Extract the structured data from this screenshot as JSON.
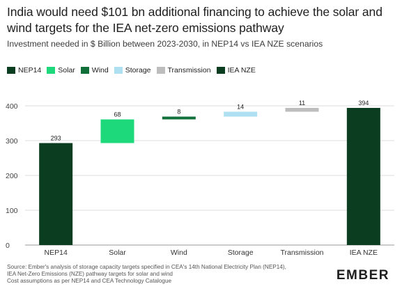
{
  "chart_data": {
    "type": "bar",
    "title": "India would need $101 bn additional financing to achieve the solar and wind targets for the IEA net-zero emissions pathway",
    "subtitle": "Investment needed in $ Billion between 2023-2030, in NEP14 vs IEA NZE scenarios",
    "categories": [
      "NEP14",
      "Solar",
      "Wind",
      "Storage",
      "Transmission",
      "IEA NZE"
    ],
    "values": [
      293,
      68,
      8,
      14,
      11,
      394
    ],
    "value_labels": [
      "293",
      "68",
      "8",
      "14",
      "11",
      "394"
    ],
    "bar_kind": [
      "total",
      "increment",
      "increment",
      "increment",
      "increment",
      "total"
    ],
    "colors": [
      "#0b3d20",
      "#1ed97b",
      "#11703a",
      "#aee0f2",
      "#bdbdbd",
      "#0b3d20"
    ],
    "legend": [
      {
        "label": "NEP14",
        "color": "#0b3d20"
      },
      {
        "label": "Solar",
        "color": "#1ed97b"
      },
      {
        "label": "Wind",
        "color": "#11703a"
      },
      {
        "label": "Storage",
        "color": "#aee0f2"
      },
      {
        "label": "Transmission",
        "color": "#bdbdbd"
      },
      {
        "label": "IEA NZE",
        "color": "#0b3d20"
      }
    ],
    "ylim": [
      0,
      400
    ],
    "yticks": [
      "0",
      "100",
      "200",
      "300",
      "400"
    ],
    "grid": true,
    "legend_position": "top-left"
  },
  "footer": {
    "source_lines": [
      "Source: Ember's analysis of storage capacity targets specified in CEA's 14th National Electricity Plan (NEP14),",
      "IEA Net-Zero Emissions (NZE) pathway targets for solar and wind",
      "Cost assumptions as per NEP14 and CEA Technology Catalogue"
    ],
    "logo": "EMBER"
  }
}
